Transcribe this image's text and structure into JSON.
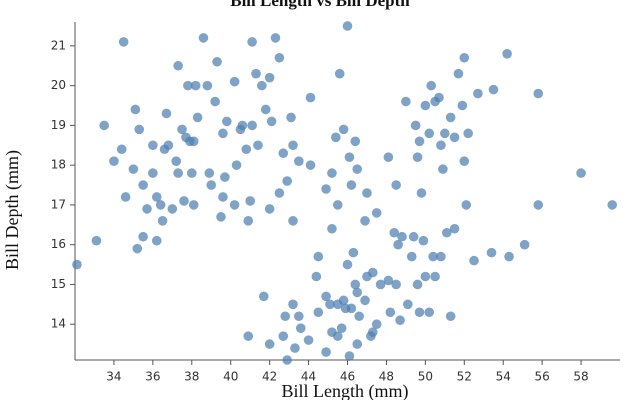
{
  "chart_data": {
    "type": "scatter",
    "title": "Bill Length vs Bill Depth",
    "x_label": "Bill Length (mm)",
    "y_label": "Bill Depth (mm)",
    "color": "#4e7fb0",
    "xlim": [
      32,
      60
    ],
    "ylim": [
      13.1,
      21.6
    ],
    "xticks": [
      34,
      36,
      38,
      40,
      42,
      44,
      46,
      48,
      50,
      52,
      54,
      56,
      58
    ],
    "yticks": [
      14,
      15,
      16,
      17,
      18,
      19,
      20,
      21
    ],
    "x": [
      32.1,
      33.1,
      33.5,
      34,
      34.4,
      34.5,
      34.6,
      35,
      35.1,
      35.3,
      35.5,
      35.7,
      35.2,
      35.5,
      36,
      36.2,
      36.4,
      36.6,
      36.7,
      36.8,
      37,
      37.2,
      37.3,
      37.5,
      37.6,
      37.7,
      37.9,
      38,
      38.2,
      38.3,
      38.6,
      38.8,
      39,
      39.2,
      39.5,
      39.6,
      39.7,
      38.9,
      39.3,
      39.8,
      40.2,
      40.3,
      40.5,
      40.8,
      40.9,
      41.1,
      41.4,
      41.1,
      41.3,
      41.6,
      42,
      42.1,
      42.3,
      42.5,
      42.7,
      42.9,
      43.1,
      43.2,
      41,
      44.1,
      44.1,
      45.8,
      45.6,
      46,
      44.9,
      36,
      37.8,
      39.6,
      41.8,
      38.1,
      36.5,
      40.2,
      37.3,
      36.2,
      43.2,
      42,
      42.5,
      43.5,
      38.1,
      40.6,
      46.5,
      46.4,
      45.2,
      46.1,
      48.1,
      47.5,
      48.5,
      49.5,
      49.6,
      49.7,
      50,
      50.2,
      50.3,
      50.5,
      50.7,
      50.8,
      51,
      51.3,
      51.5,
      51.7,
      51.9,
      52,
      52,
      52.2,
      52.7,
      53.5,
      54.2,
      55.8,
      49,
      49.8,
      50.9,
      46.9,
      45.5,
      46.2,
      47,
      55.8,
      58,
      59.6,
      52.1,
      51.5,
      45.4,
      40.9,
      42,
      42.7,
      42.9,
      43.2,
      43.3,
      43.5,
      43.6,
      44,
      44.4,
      44.5,
      44.9,
      45.1,
      45.2,
      45.5,
      45.5,
      45.7,
      45.8,
      46.1,
      46.2,
      46.3,
      46.4,
      46.5,
      46.6,
      46.9,
      47.2,
      47.3,
      47.5,
      47.7,
      48.1,
      48.2,
      48.5,
      48.6,
      48.7,
      48.8,
      49.1,
      49.3,
      49.4,
      49.6,
      49.9,
      50,
      50.2,
      50.4,
      50.5,
      50.8,
      51.1,
      51.3,
      52.5,
      53.4,
      54.3,
      55.1,
      41.7,
      45.2,
      46,
      47,
      48.4,
      49.7,
      42.8,
      44.9,
      45.9,
      47.3,
      44.5,
      46.5
    ],
    "values": [
      15.5,
      16.1,
      19,
      18.1,
      18.4,
      21.1,
      17.2,
      17.9,
      19.4,
      18.9,
      17.5,
      16.9,
      15.9,
      16.2,
      18.5,
      17.2,
      17,
      18.4,
      19.3,
      18.5,
      16.9,
      18.1,
      17.8,
      18.9,
      17.1,
      18.7,
      18.6,
      17.8,
      20,
      19.2,
      21.2,
      20,
      17.5,
      19.6,
      16.7,
      18.8,
      17.7,
      17.8,
      20.6,
      19.1,
      17,
      18,
      18.9,
      18.4,
      16.6,
      19,
      18.5,
      21.1,
      20.3,
      20,
      20.2,
      19.1,
      21.2,
      20.7,
      18.3,
      17.6,
      19.2,
      18.5,
      17.1,
      19.7,
      18,
      18.9,
      20.3,
      21.5,
      17.4,
      17.8,
      20,
      17.2,
      19.4,
      17,
      16.6,
      20.1,
      20.5,
      16.1,
      16.6,
      16.9,
      17.3,
      18.1,
      18.6,
      19,
      17.9,
      18.6,
      17.8,
      18.2,
      18.2,
      16.8,
      17.5,
      19,
      18.2,
      18.6,
      19.5,
      18.8,
      20,
      19.6,
      19.7,
      18.5,
      18.8,
      19.2,
      18.7,
      20.3,
      19.5,
      18.1,
      20.7,
      18.8,
      19.8,
      19.9,
      20.8,
      19.8,
      19.6,
      17.3,
      17.9,
      16.6,
      17,
      17.5,
      17.3,
      17,
      17.8,
      17,
      17,
      16.4,
      18.7,
      13.7,
      13.5,
      13.7,
      13.1,
      14.5,
      13.4,
      14.2,
      13.9,
      13.6,
      15.2,
      14.3,
      13.3,
      14.5,
      13.8,
      13.7,
      14.5,
      13.9,
      14.6,
      13.2,
      14.4,
      15.8,
      15,
      13.5,
      14.2,
      14.6,
      13.7,
      15.3,
      14,
      15,
      15.1,
      14.3,
      15,
      16,
      14.1,
      16.2,
      14.5,
      15.7,
      16.2,
      15,
      16.1,
      15.2,
      14.3,
      15.7,
      15.2,
      15.7,
      16.3,
      14.2,
      15.6,
      15.8,
      15.7,
      16,
      14.7,
      16.4,
      15.5,
      15.2,
      16.3,
      14.3,
      14.2,
      14.7,
      14.4,
      13.8,
      15.7,
      14.8
    ]
  }
}
